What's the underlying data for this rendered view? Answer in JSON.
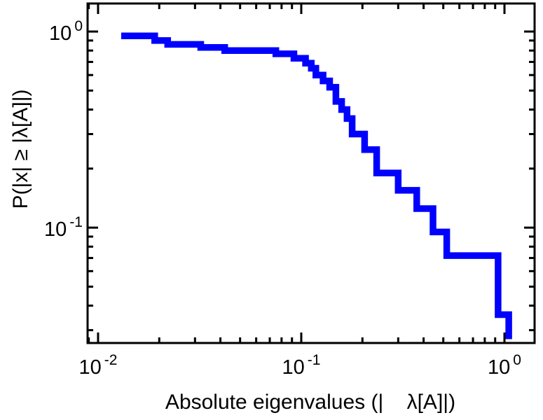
{
  "chart_data": {
    "type": "line",
    "plot_style": "log-log step CCDF (staircase)",
    "title": "",
    "xlabel": "Absolute eigenvalues (|    λ[A]|)",
    "ylabel": "P(|x| ≥ |λ[A]|)",
    "x_scale": "log",
    "y_scale": "log",
    "xlim": [
      0.00888,
      1.407
    ],
    "ylim": [
      0.0258,
      1.39
    ],
    "grid": false,
    "legend": "none",
    "x_major_ticks": [
      {
        "value": 0.01,
        "base": "10",
        "exp": "-2"
      },
      {
        "value": 0.1,
        "base": "10",
        "exp": "-1"
      },
      {
        "value": 1.0,
        "base": "10",
        "exp": "0"
      }
    ],
    "y_major_ticks": [
      {
        "value": 1.0,
        "base": "10",
        "exp": "0"
      },
      {
        "value": 0.1,
        "base": "10",
        "exp": "-1"
      }
    ],
    "series": [
      {
        "name": "absolute-eigenvalue-ccdf",
        "color": "#0000ff",
        "line_width": 9.5,
        "points": [
          [
            0.013,
            0.95
          ],
          [
            0.019,
            0.95
          ],
          [
            0.019,
            0.9
          ],
          [
            0.022,
            0.9
          ],
          [
            0.022,
            0.86
          ],
          [
            0.032,
            0.86
          ],
          [
            0.032,
            0.83
          ],
          [
            0.042,
            0.83
          ],
          [
            0.042,
            0.8
          ],
          [
            0.075,
            0.8
          ],
          [
            0.075,
            0.77
          ],
          [
            0.092,
            0.77
          ],
          [
            0.092,
            0.73
          ],
          [
            0.105,
            0.73
          ],
          [
            0.105,
            0.69
          ],
          [
            0.112,
            0.69
          ],
          [
            0.112,
            0.65
          ],
          [
            0.118,
            0.65
          ],
          [
            0.118,
            0.6
          ],
          [
            0.128,
            0.6
          ],
          [
            0.128,
            0.56
          ],
          [
            0.138,
            0.56
          ],
          [
            0.138,
            0.52
          ],
          [
            0.148,
            0.52
          ],
          [
            0.148,
            0.44
          ],
          [
            0.158,
            0.44
          ],
          [
            0.158,
            0.4
          ],
          [
            0.168,
            0.4
          ],
          [
            0.168,
            0.36
          ],
          [
            0.178,
            0.36
          ],
          [
            0.178,
            0.3
          ],
          [
            0.205,
            0.3
          ],
          [
            0.205,
            0.25
          ],
          [
            0.235,
            0.25
          ],
          [
            0.235,
            0.19
          ],
          [
            0.3,
            0.19
          ],
          [
            0.3,
            0.155
          ],
          [
            0.37,
            0.155
          ],
          [
            0.37,
            0.125
          ],
          [
            0.445,
            0.125
          ],
          [
            0.445,
            0.095
          ],
          [
            0.52,
            0.095
          ],
          [
            0.52,
            0.072
          ],
          [
            0.93,
            0.072
          ],
          [
            0.93,
            0.036
          ],
          [
            1.05,
            0.036
          ],
          [
            1.05,
            0.027
          ]
        ]
      }
    ]
  }
}
